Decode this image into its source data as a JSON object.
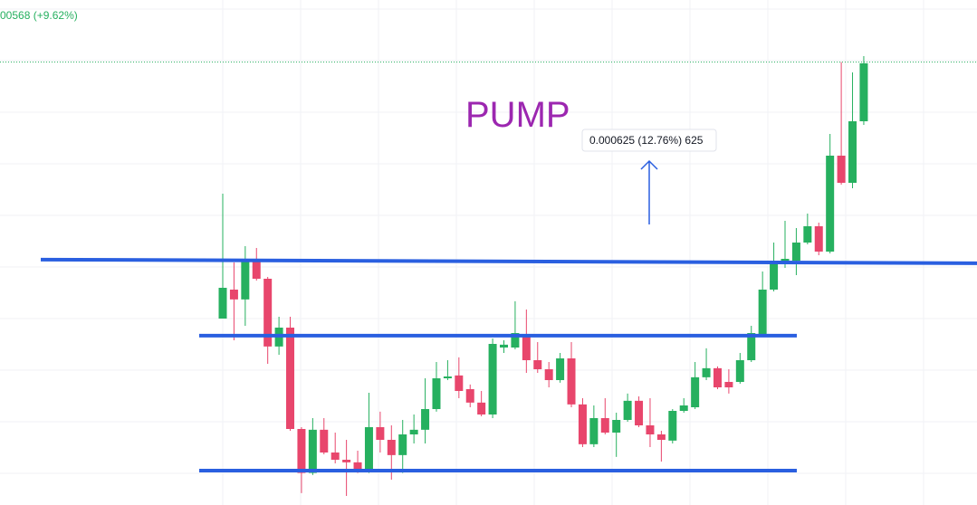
{
  "chart_data": {
    "type": "candlestick",
    "header_price": "00568 (+9.62%)",
    "annotation": "PUMP",
    "measure_label": "0.000625 (12.76%) 625",
    "ylim": [
      0.003967,
      0.00592
    ],
    "up_color": "#26b05f",
    "down_color": "#e8466c",
    "level_color": "#2a5fe0",
    "annotation_color": "#9c27b0",
    "last_price": 0.00568,
    "levels": [
      {
        "start": 0.004916,
        "end": 0.004902
      },
      {
        "start": 0.004622,
        "end": 0.004622
      },
      {
        "start": 0.0041,
        "end": 0.0041
      }
    ],
    "open": [
      0.004688,
      0.0048,
      0.004762,
      0.004912,
      0.004842,
      0.00458,
      0.004653,
      0.004261,
      0.004091,
      0.004258,
      0.00417,
      0.004142,
      0.004132,
      0.004097,
      0.004268,
      0.004219,
      0.00416,
      0.00424,
      0.004258,
      0.004338,
      0.004457,
      0.004468,
      0.004415,
      0.004363,
      0.004317,
      0.004576,
      0.004576,
      0.004625,
      0.004527,
      0.004492,
      0.00445,
      0.004534,
      0.004356,
      0.004202,
      0.004303,
      0.004247,
      0.004296,
      0.00437,
      0.004275,
      0.00424,
      0.004216,
      0.004331,
      0.004345,
      0.004461,
      0.004496,
      0.004443,
      0.004443,
      0.004527,
      0.004625,
      0.0048,
      0.004898,
      0.004912,
      0.004982,
      0.005045,
      0.004947,
      0.005318,
      0.005213,
      0.005451
    ],
    "high": [
      0.005171,
      0.004905,
      0.004968,
      0.004961,
      0.004849,
      0.004695,
      0.004695,
      0.004268,
      0.004303,
      0.004303,
      0.004247,
      0.004219,
      0.004177,
      0.004401,
      0.004328,
      0.004275,
      0.004296,
      0.004317,
      0.004457,
      0.00452,
      0.004527,
      0.004538,
      0.004433,
      0.004408,
      0.004611,
      0.004604,
      0.004755,
      0.004723,
      0.004597,
      0.00452,
      0.004555,
      0.004597,
      0.00438,
      0.004352,
      0.00438,
      0.004324,
      0.004398,
      0.004387,
      0.00438,
      0.004254,
      0.004338,
      0.00438,
      0.00452,
      0.004573,
      0.004503,
      0.004492,
      0.004555,
      0.00466,
      0.00487,
      0.004982,
      0.005066,
      0.005038,
      0.005094,
      0.005059,
      0.005402,
      0.00568,
      0.00564,
      0.005703
    ],
    "low": [
      0.004688,
      0.004604,
      0.00466,
      0.004835,
      0.004513,
      0.004548,
      0.004254,
      0.004013,
      0.004083,
      0.004163,
      0.004128,
      0.004002,
      0.004091,
      0.004091,
      0.00417,
      0.004065,
      0.004091,
      0.004205,
      0.004205,
      0.004328,
      0.00445,
      0.00438,
      0.004345,
      0.00431,
      0.004303,
      0.004555,
      0.004569,
      0.004478,
      0.004478,
      0.004422,
      0.00444,
      0.004345,
      0.004191,
      0.004191,
      0.00424,
      0.004153,
      0.004289,
      0.004268,
      0.004191,
      0.004135,
      0.004205,
      0.004324,
      0.004338,
      0.00445,
      0.004415,
      0.004398,
      0.004436,
      0.00452,
      0.004618,
      0.004793,
      0.004884,
      0.004856,
      0.004975,
      0.004933,
      0.00494,
      0.005206,
      0.005192,
      0.005437
    ],
    "close": [
      0.004807,
      0.004762,
      0.004912,
      0.004842,
      0.00458,
      0.004653,
      0.004261,
      0.004091,
      0.004258,
      0.00417,
      0.004142,
      0.004132,
      0.004097,
      0.004268,
      0.004219,
      0.00416,
      0.00424,
      0.004258,
      0.004338,
      0.004457,
      0.004464,
      0.004408,
      0.004363,
      0.004317,
      0.00459,
      0.004587,
      0.004632,
      0.004527,
      0.004492,
      0.00445,
      0.004534,
      0.004356,
      0.004202,
      0.004303,
      0.004247,
      0.004296,
      0.00437,
      0.004275,
      0.00424,
      0.004219,
      0.004331,
      0.004352,
      0.004461,
      0.004496,
      0.004422,
      0.004422,
      0.004527,
      0.004632,
      0.0048,
      0.004905,
      0.004919,
      0.004982,
      0.005045,
      0.004947,
      0.005318,
      0.005213,
      0.005451,
      0.005675
    ]
  }
}
